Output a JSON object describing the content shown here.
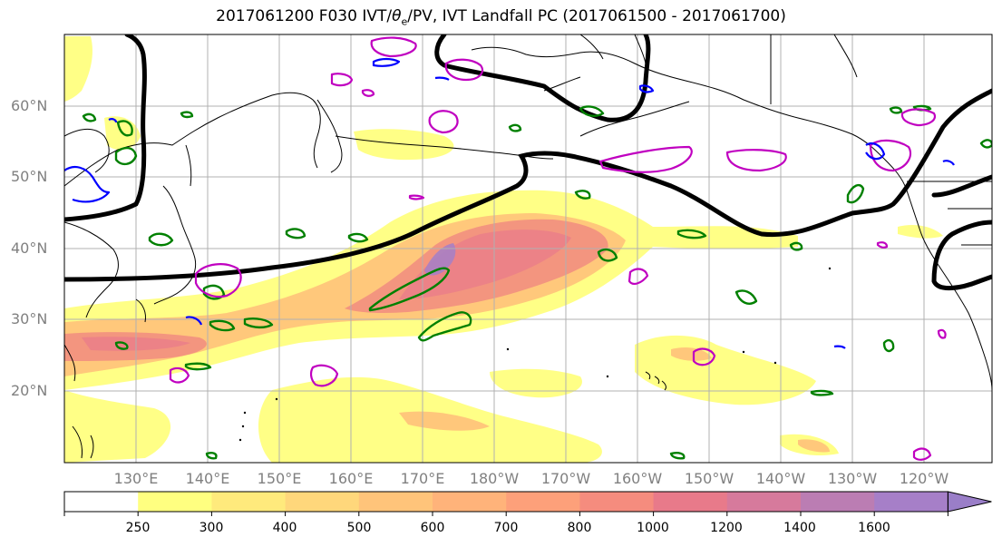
{
  "title": {
    "prefix": "2017061200 F030 IVT/",
    "theta_symbol": "θ",
    "theta_subscript": "e",
    "suffix": "/PV, IVT Landfall PC (2017061500 - 2017061700)"
  },
  "map": {
    "lat_labels": [
      "60°N",
      "50°N",
      "40°N",
      "30°N",
      "20°N"
    ],
    "lon_labels": [
      "130°E",
      "140°E",
      "150°E",
      "160°E",
      "170°E",
      "180°W",
      "170°W",
      "160°W",
      "150°W",
      "140°W",
      "130°W",
      "120°W"
    ],
    "label_color": "#808080",
    "colors": {
      "ivt_low": "#ffff80",
      "ivt_mid": "#ffc27a",
      "ivt_high": "#f28f7f",
      "ivt_peak": "#a880c4",
      "pv_contour": "#c000c0",
      "theta_contour": "#008000",
      "negative_contour": "#0000ff",
      "jet_line": "#000000"
    }
  },
  "colorbar": {
    "tick_labels": [
      "250",
      "300",
      "400",
      "500",
      "600",
      "700",
      "800",
      "1000",
      "1200",
      "1400",
      "1600"
    ],
    "bin_colors": [
      "#ffffff",
      "#ffff80",
      "#ffea7c",
      "#ffd77b",
      "#ffc47a",
      "#ffb37a",
      "#fda07a",
      "#f58c7e",
      "#e87a8a",
      "#d67a9c",
      "#bb7db3",
      "#a67fc8",
      "#9a7ec8"
    ]
  }
}
